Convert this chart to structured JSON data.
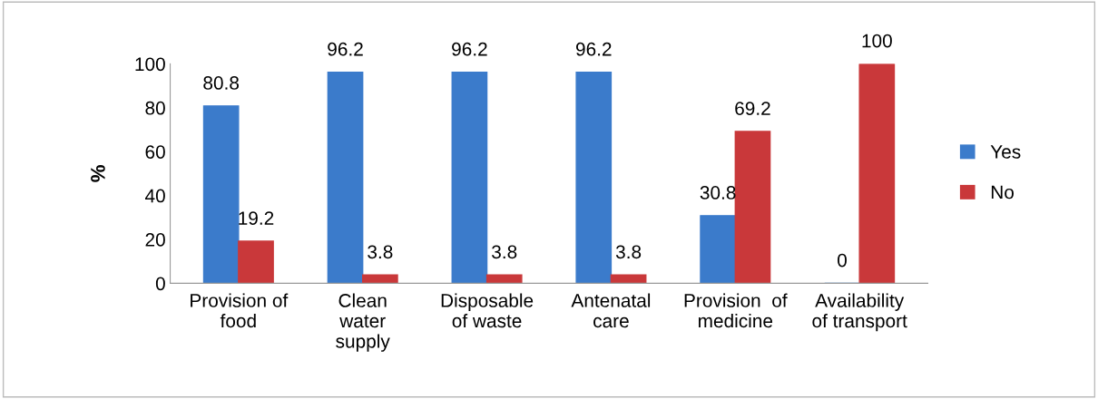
{
  "chart_data": {
    "type": "bar",
    "ylabel": "%",
    "categories": [
      "Provision of\nfood",
      "Clean\nwater\nsupply",
      "Disposable\nof waste",
      "Antenatal\ncare",
      "Provision  of\nmedicine",
      "Availability\nof transport"
    ],
    "series": [
      {
        "name": "Yes",
        "color": "#3b7bcb",
        "values": [
          80.8,
          96.2,
          96.2,
          96.2,
          30.8,
          0
        ]
      },
      {
        "name": "No",
        "color": "#c9383a",
        "values": [
          19.2,
          3.8,
          3.8,
          3.8,
          69.2,
          100
        ]
      }
    ],
    "ylim": [
      0,
      100
    ],
    "yticks": [
      0,
      20,
      40,
      60,
      80,
      100
    ],
    "grid": false,
    "legend": "right",
    "data_labels": true
  }
}
